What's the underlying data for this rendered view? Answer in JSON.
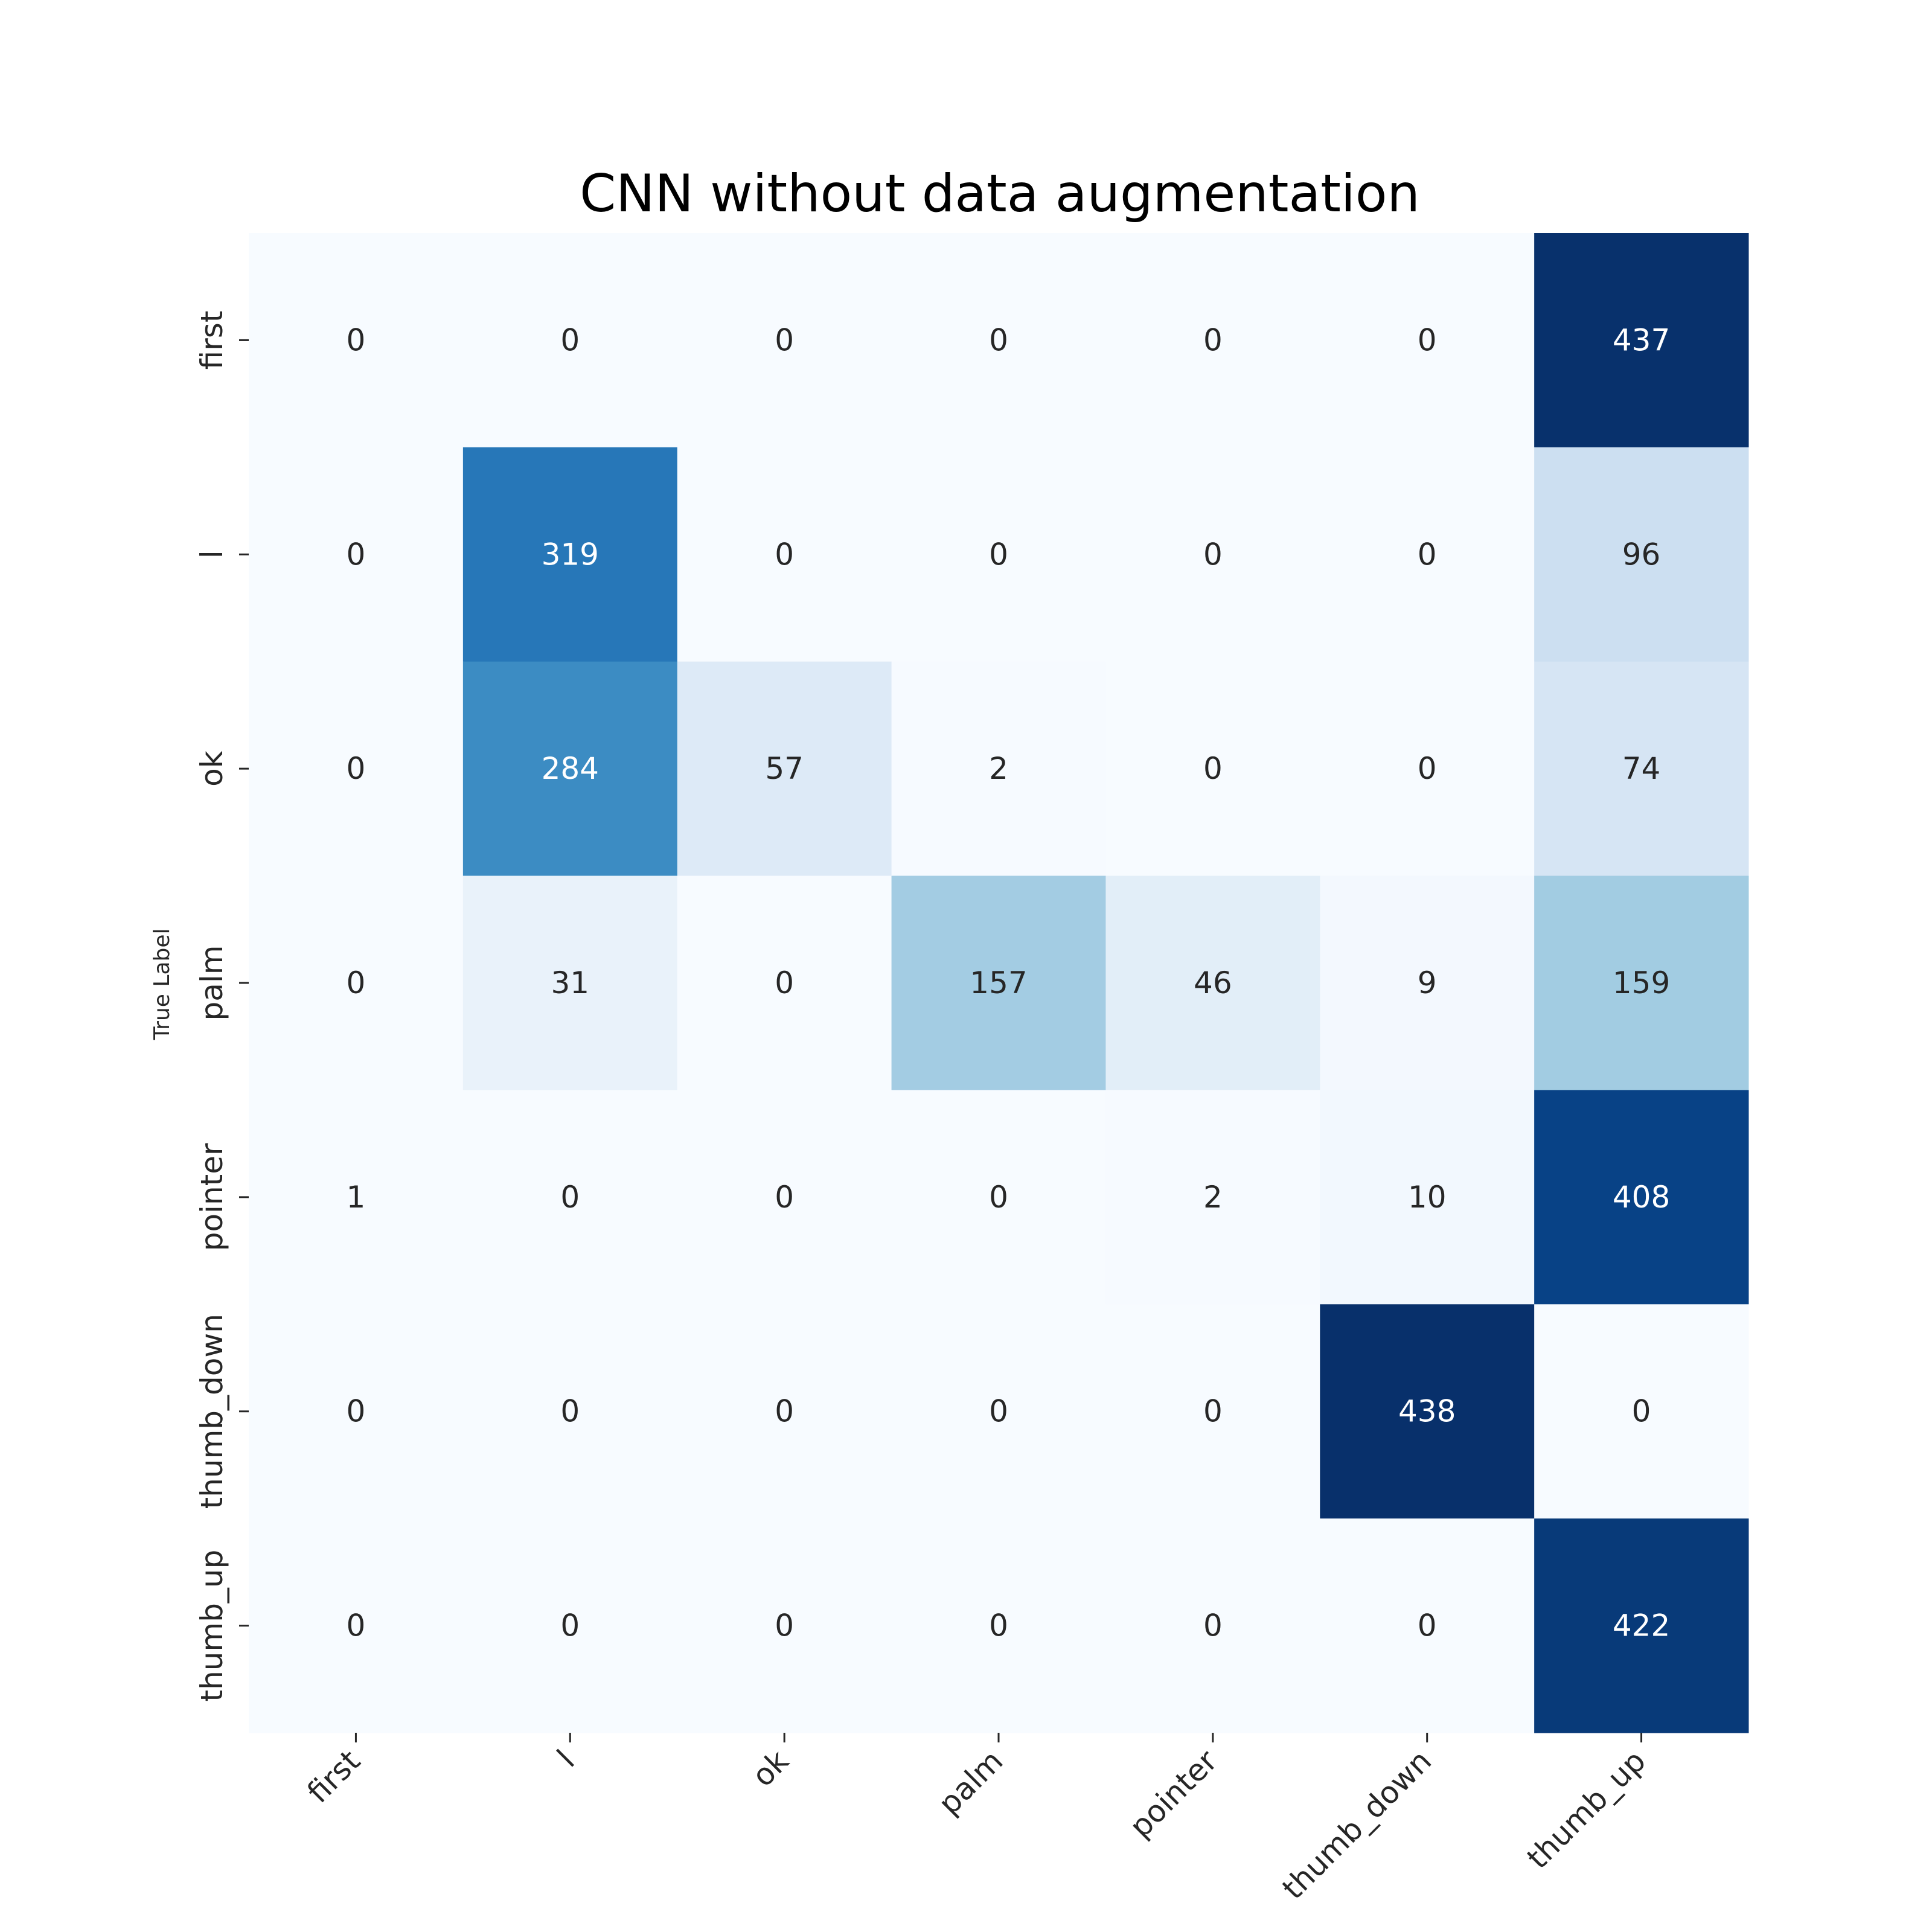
{
  "chart_data": {
    "type": "heatmap",
    "title": "CNN without data augmentation",
    "ylabel": "True Label",
    "xlabel": "",
    "x_categories": [
      "first",
      "l",
      "ok",
      "palm",
      "pointer",
      "thumb_down",
      "thumb_up"
    ],
    "y_categories": [
      "first",
      "l",
      "ok",
      "palm",
      "pointer",
      "thumb_down",
      "thumb_up"
    ],
    "values": [
      [
        0,
        0,
        0,
        0,
        0,
        0,
        437
      ],
      [
        0,
        319,
        0,
        0,
        0,
        0,
        96
      ],
      [
        0,
        284,
        57,
        2,
        0,
        0,
        74
      ],
      [
        0,
        31,
        0,
        157,
        46,
        9,
        159
      ],
      [
        1,
        0,
        0,
        0,
        2,
        10,
        408
      ],
      [
        0,
        0,
        0,
        0,
        0,
        438,
        0
      ],
      [
        0,
        0,
        0,
        0,
        0,
        0,
        422
      ]
    ],
    "colormap": "Blues",
    "value_range": [
      0,
      438
    ],
    "colorbar": false,
    "annotations": true
  }
}
